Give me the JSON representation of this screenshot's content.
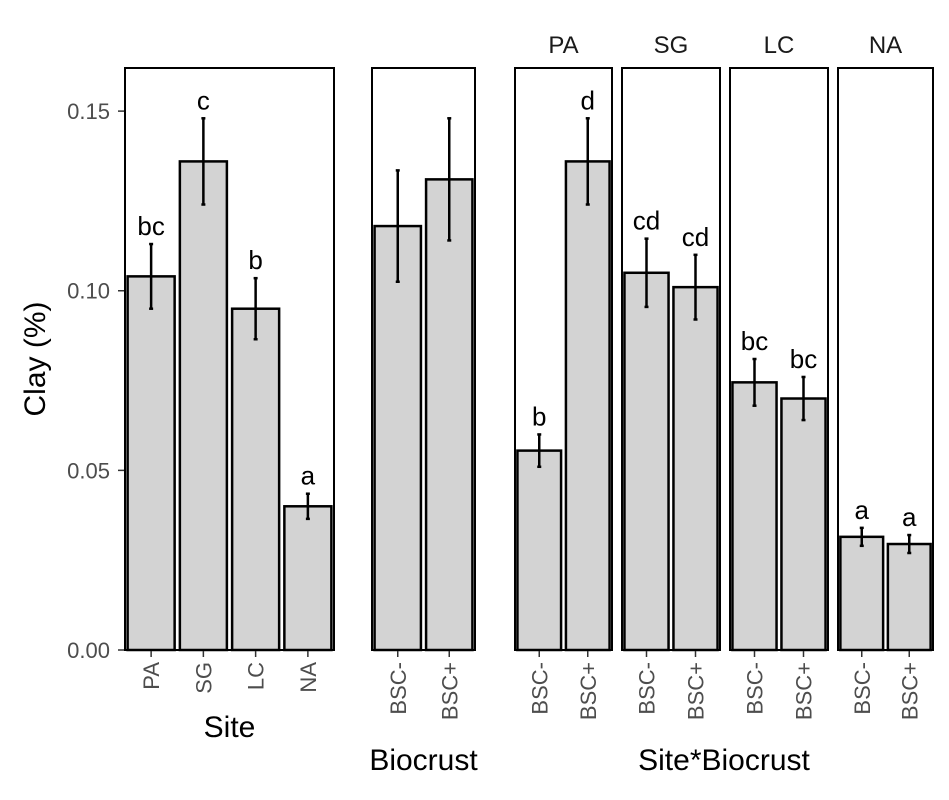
{
  "chart_data": {
    "type": "bar",
    "ylabel": "Clay (%)",
    "ylim": [
      0,
      0.162
    ],
    "yticks": [
      "0.00",
      "0.05",
      "0.10",
      "0.15"
    ],
    "ytick_values": [
      0,
      0.05,
      0.1,
      0.15
    ],
    "grid": false,
    "panels": [
      {
        "id": "site",
        "xlabel": "Site",
        "strip": "",
        "categories": [
          "PA",
          "SG",
          "LC",
          "NA"
        ],
        "values": [
          0.104,
          0.136,
          0.095,
          0.04
        ],
        "errors": [
          0.009,
          0.012,
          0.0085,
          0.0035
        ],
        "labels": [
          "bc",
          "c",
          "b",
          "a"
        ]
      },
      {
        "id": "biocrust",
        "xlabel": "Biocrust",
        "strip": "",
        "categories": [
          "BSC-",
          "BSC+"
        ],
        "values": [
          0.118,
          0.131
        ],
        "errors": [
          0.0155,
          0.017
        ],
        "labels": [
          "",
          ""
        ]
      },
      {
        "id": "site-biocrust-pa",
        "xlabel": "",
        "strip": "PA",
        "categories": [
          "BSC-",
          "BSC+"
        ],
        "values": [
          0.0555,
          0.136
        ],
        "errors": [
          0.0045,
          0.012
        ],
        "labels": [
          "b",
          "d"
        ]
      },
      {
        "id": "site-biocrust-sg",
        "xlabel": "",
        "strip": "SG",
        "categories": [
          "BSC-",
          "BSC+"
        ],
        "values": [
          0.105,
          0.101
        ],
        "errors": [
          0.0095,
          0.009
        ],
        "labels": [
          "cd",
          "cd"
        ]
      },
      {
        "id": "site-biocrust-lc",
        "xlabel": "",
        "strip": "LC",
        "categories": [
          "BSC-",
          "BSC+"
        ],
        "values": [
          0.0745,
          0.07
        ],
        "errors": [
          0.0065,
          0.006
        ],
        "labels": [
          "bc",
          "bc"
        ]
      },
      {
        "id": "site-biocrust-na",
        "xlabel": "",
        "strip": "NA",
        "categories": [
          "BSC-",
          "BSC+"
        ],
        "values": [
          0.0315,
          0.0295
        ],
        "errors": [
          0.0025,
          0.0025
        ],
        "labels": [
          "a",
          "a"
        ]
      }
    ],
    "group_xlabel": "Site*Biocrust",
    "bar_color": "#d3d3d3",
    "bar_edge_color": "#000000"
  }
}
